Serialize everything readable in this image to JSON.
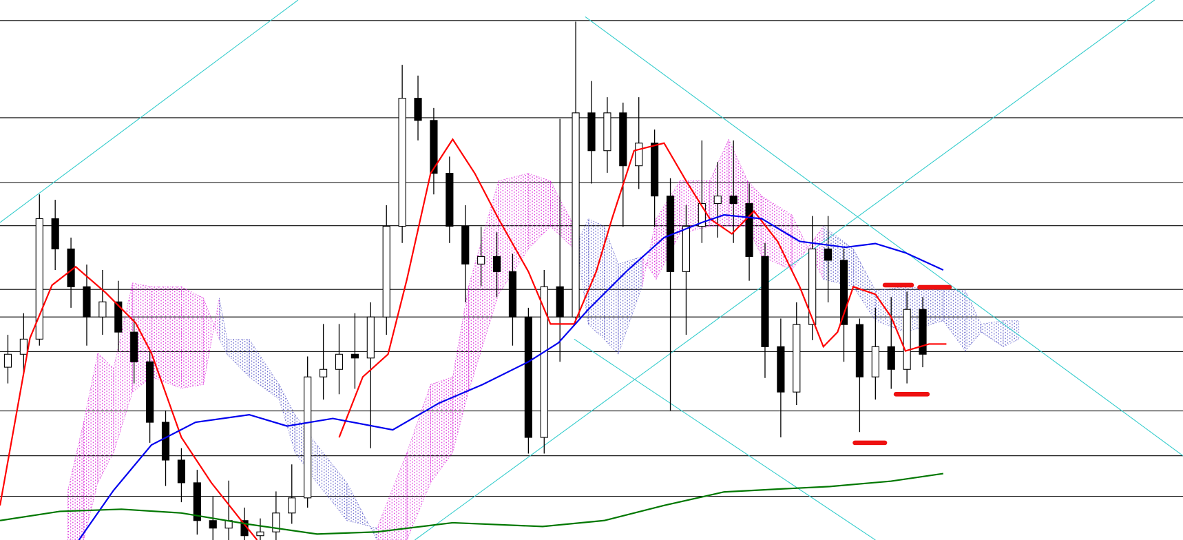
{
  "chart_data": {
    "type": "candlestick",
    "xlim": [
      0,
      75
    ],
    "ylim": [
      0,
      100
    ],
    "background": "#ffffff",
    "levels": {
      "color": "#000000",
      "values": [
        96.2,
        78.2,
        66.2,
        58.2,
        46.4,
        41.3,
        34.9,
        23.9,
        15.6,
        8.1
      ]
    },
    "candles": {
      "color": "#000000",
      "open": [
        32,
        34.4,
        37.2,
        59.5,
        53.9,
        46.9,
        41.3,
        44.1,
        38.5,
        33,
        21.8,
        14.8,
        10.6,
        3.6,
        2.2,
        3.6,
        0.8,
        1.5,
        5,
        7.8,
        30.2,
        31.6,
        34.4,
        33.7,
        41.3,
        58.1,
        81.8,
        77.7,
        67.9,
        58.1,
        51.1,
        52.5,
        49.7,
        41.3,
        19,
        46.9,
        41.3,
        79.1,
        72.1,
        79.1,
        69.3,
        73.5,
        63.7,
        49.7,
        58.1,
        62.3,
        63.7,
        62.3,
        52.5,
        35.8,
        27.4,
        39.9,
        53.9,
        51.8,
        39.9,
        30.2,
        35.8,
        31.6,
        42.7
      ],
      "high": [
        38,
        42,
        64,
        63,
        56,
        51,
        50,
        48,
        41,
        35,
        24,
        17,
        13,
        8,
        11,
        6,
        4,
        9,
        14,
        34,
        40,
        40,
        42,
        44,
        62,
        88,
        86,
        80,
        71,
        62,
        58,
        57,
        53,
        43,
        50,
        78,
        96,
        85,
        82,
        81,
        82,
        76,
        67,
        62,
        74,
        70,
        74,
        66,
        55,
        41,
        44,
        60,
        60,
        54,
        41,
        43,
        45,
        46,
        45
      ],
      "low": [
        29,
        31,
        36,
        50,
        43,
        36,
        38,
        35,
        29,
        18,
        10,
        7,
        1,
        0,
        0,
        0,
        0,
        0,
        3,
        6,
        26,
        27,
        28,
        17,
        38,
        55,
        74,
        64,
        55,
        44,
        47,
        45,
        36,
        16,
        16,
        33,
        40,
        66,
        68,
        58,
        65,
        58,
        24,
        38,
        55,
        56,
        55,
        48,
        30,
        19,
        25,
        37,
        44,
        33,
        20,
        26,
        28,
        29,
        32
      ],
      "close": [
        34.4,
        37.2,
        59.5,
        53.9,
        46.9,
        41.3,
        44.1,
        38.5,
        33,
        21.8,
        14.8,
        10.6,
        3.6,
        2.2,
        3.6,
        0.8,
        1.5,
        5,
        7.8,
        30.2,
        31.6,
        34.4,
        33.7,
        41.3,
        58.1,
        81.8,
        77.7,
        67.9,
        58.1,
        51.1,
        52.5,
        49.7,
        41.3,
        19,
        46.9,
        41.3,
        79.1,
        72.1,
        79.1,
        69.3,
        73.5,
        63.7,
        49.7,
        58.1,
        62.3,
        63.7,
        62.3,
        52.5,
        35.8,
        27.4,
        39.9,
        53.9,
        51.8,
        39.9,
        30.2,
        35.8,
        31.6,
        42.7,
        34.4
      ]
    },
    "cloud": {
      "colors": [
        "#dd33dd",
        "#6666cc"
      ],
      "x": [
        4.3,
        5.3,
        6.2,
        7.2,
        8.4,
        9.6,
        11.5,
        12.9,
        13.9,
        14.4,
        15.8,
        17.7,
        18.7,
        20.1,
        22,
        23.9,
        25.8,
        27.3,
        28.7,
        29.7,
        31.6,
        33.5,
        34.9,
        36.4,
        37.3,
        38.3,
        39.2,
        40.7,
        41.6,
        43.1,
        45,
        46.2,
        47.4,
        48.3,
        50.2,
        52.2,
        54.1,
        55.5,
        57.4,
        59.8,
        61.2,
        62.2,
        63.6,
        64.6
      ],
      "span_a": [
        9.2,
        21.8,
        34.6,
        31.8,
        47.6,
        46.9,
        46.9,
        44.8,
        37.2,
        34.4,
        30.2,
        26,
        16.2,
        10.6,
        3.6,
        2.2,
        16.2,
        28.8,
        30.2,
        46.9,
        66.5,
        67.9,
        66.5,
        58.1,
        39.9,
        37.2,
        34.4,
        46.9,
        59.5,
        66.5,
        66.5,
        74.2,
        66.5,
        63.7,
        60.2,
        48.3,
        46.9,
        40.6,
        38.5,
        40.6,
        35,
        38.5,
        35.8,
        37.2
      ],
      "span_b": [
        0,
        0,
        10.6,
        16.2,
        27.4,
        30.2,
        28.1,
        28.8,
        44.8,
        37.2,
        37.2,
        28.8,
        23.2,
        17.6,
        10.6,
        0,
        0,
        10.6,
        16.2,
        27.4,
        45.5,
        53.9,
        58.1,
        53.9,
        59.5,
        58.1,
        51.1,
        52.5,
        48.3,
        56.7,
        58.1,
        58.1,
        58.1,
        52.5,
        50,
        58.1,
        53.9,
        46.2,
        46.9,
        46.2,
        46.2,
        40,
        40.6,
        40.6
      ]
    },
    "series": [
      {
        "color": "#ff0000",
        "x": [
          0,
          1.9,
          3.3,
          4.8,
          6.7,
          8.6,
          9.6,
          11.5,
          13.4,
          15.3,
          16.3,
          19.9,
          21.5,
          23,
          24.6,
          25.8,
          27.3,
          28.7,
          30.1,
          31.6,
          33.5,
          34.9,
          36.4,
          37.8,
          38.8,
          40.2,
          42.1,
          43.5,
          45,
          46.4,
          47.8,
          49.3,
          50.7,
          52.2,
          53.1,
          54.1,
          55.5,
          56.5,
          57.4,
          58.9,
          60
        ],
        "values": [
          6.4,
          37.4,
          47.2,
          50.6,
          45.8,
          40.2,
          34.6,
          19,
          10.6,
          3.6,
          0,
          null,
          19,
          30.2,
          34.4,
          48.3,
          67.9,
          74.2,
          67.9,
          59.5,
          49.7,
          40,
          40,
          49.7,
          59.5,
          72.1,
          73.5,
          66.5,
          59.5,
          56.7,
          60.9,
          55.3,
          46.9,
          35.8,
          38.5,
          46.9,
          45.5,
          41.3,
          35,
          36.3,
          36.3
        ]
      },
      {
        "color": "#0000ee",
        "x": [
          5,
          7.2,
          9.6,
          12.4,
          15.8,
          18.2,
          21.1,
          24.9,
          27.8,
          30.6,
          33.5,
          35.4,
          37.3,
          39.7,
          42.1,
          44.5,
          45.9,
          48.3,
          50.7,
          53.6,
          55.5,
          57.4,
          59.8
        ],
        "values": [
          0,
          9.2,
          17.6,
          21.8,
          23.2,
          21.1,
          22.5,
          20.4,
          25.3,
          28.8,
          33,
          36.5,
          42.7,
          49.7,
          56,
          58.8,
          60.2,
          59.5,
          55.3,
          54.2,
          54.9,
          53.2,
          50
        ]
      },
      {
        "color": "#007700",
        "x": [
          0,
          3.8,
          7.7,
          11.5,
          15.8,
          20.1,
          23.9,
          28.7,
          34.4,
          38.3,
          42.1,
          45.9,
          49.8,
          52.6,
          56.5,
          59.8
        ],
        "values": [
          3.6,
          5.3,
          5.7,
          5,
          2.9,
          1.1,
          1.5,
          3.2,
          2.5,
          3.6,
          6.4,
          8.9,
          9.5,
          9.9,
          10.9,
          12.3
        ]
      }
    ],
    "trendlines": {
      "color": "#33cccc",
      "lines": [
        {
          "x": [
            0,
            18.9
          ],
          "values": [
            58.8,
            100
          ]
        },
        {
          "x": [
            37.1,
            75
          ],
          "values": [
            96.9,
            15.6
          ]
        },
        {
          "x": [
            26.3,
            73.2
          ],
          "values": [
            0,
            100
          ]
        },
        {
          "x": [
            36.4,
            55.5
          ],
          "values": [
            37.2,
            0
          ]
        }
      ]
    },
    "markers": {
      "color": "#ee1111",
      "x0": [
        54.2,
        56.8,
        56.1,
        58.3
      ],
      "x1": [
        56.1,
        58.8,
        57.8,
        60.2
      ],
      "values": [
        18,
        27,
        47.2,
        46.8
      ]
    }
  }
}
